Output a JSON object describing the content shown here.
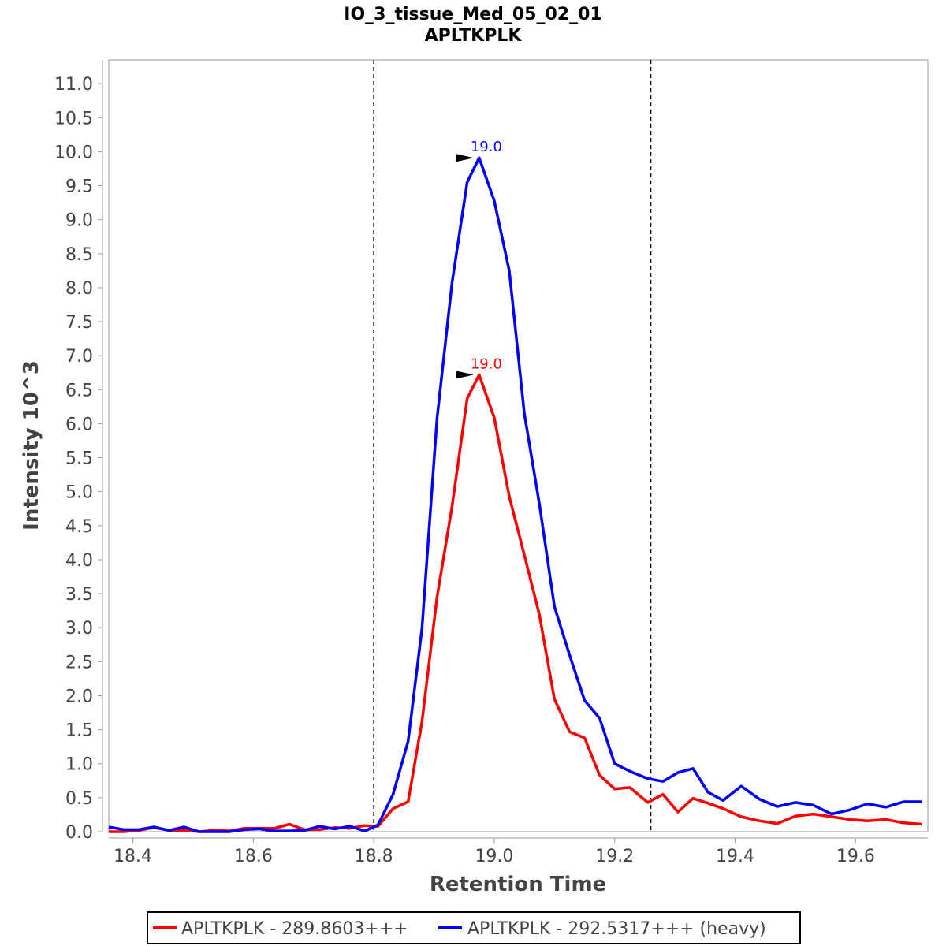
{
  "chart_data": {
    "type": "line",
    "title": "IO_3_tissue_Med_05_02_01",
    "subtitle": "APLTKPLK",
    "xlabel": "Retention Time",
    "ylabel": "Intensity 10^3",
    "xlim": [
      18.36,
      19.72
    ],
    "ylim": [
      0,
      11.35
    ],
    "xticks": [
      "18.4",
      "18.6",
      "18.8",
      "19.0",
      "19.2",
      "19.4",
      "19.6"
    ],
    "yticks": [
      "0.0",
      "0.5",
      "1.0",
      "1.5",
      "2.0",
      "2.5",
      "3.0",
      "3.5",
      "4.0",
      "4.5",
      "5.0",
      "5.5",
      "6.0",
      "6.5",
      "7.0",
      "7.5",
      "8.0",
      "8.5",
      "9.0",
      "9.5",
      "10.0",
      "10.5",
      "11.0"
    ],
    "boundaries": [
      18.8,
      19.26
    ],
    "legend_position": "bottom",
    "series": [
      {
        "name": "APLTKPLK - 289.8603+++",
        "color": "#ff0000",
        "peak": {
          "x": 18.975,
          "y": 6.72,
          "label": "19.0"
        },
        "x": [
          18.36,
          18.385,
          18.41,
          18.435,
          18.46,
          18.485,
          18.51,
          18.535,
          18.56,
          18.585,
          18.61,
          18.635,
          18.66,
          18.685,
          18.71,
          18.735,
          18.76,
          18.785,
          18.807,
          18.832,
          18.857,
          18.88,
          18.905,
          18.93,
          18.955,
          18.975,
          19.0,
          19.025,
          19.05,
          19.075,
          19.1,
          19.125,
          19.15,
          19.175,
          19.2,
          19.225,
          19.255,
          19.28,
          19.305,
          19.33,
          19.355,
          19.38,
          19.41,
          19.44,
          19.47,
          19.5,
          19.53,
          19.56,
          19.59,
          19.62,
          19.65,
          19.68,
          19.71
        ],
        "y": [
          0.0,
          0.0,
          0.02,
          0.06,
          0.02,
          0.02,
          0.0,
          0.02,
          0.01,
          0.05,
          0.05,
          0.05,
          0.11,
          0.03,
          0.03,
          0.06,
          0.05,
          0.09,
          0.08,
          0.34,
          0.44,
          1.62,
          3.45,
          4.79,
          6.37,
          6.72,
          6.09,
          4.93,
          4.07,
          3.19,
          1.95,
          1.47,
          1.38,
          0.83,
          0.63,
          0.65,
          0.43,
          0.55,
          0.29,
          0.49,
          0.42,
          0.34,
          0.22,
          0.16,
          0.12,
          0.23,
          0.26,
          0.22,
          0.18,
          0.16,
          0.18,
          0.13,
          0.11
        ]
      },
      {
        "name": "APLTKPLK - 292.5317+++ (heavy)",
        "color": "#0000ff",
        "peak": {
          "x": 18.975,
          "y": 9.91,
          "label": "19.0"
        },
        "x": [
          18.36,
          18.385,
          18.41,
          18.435,
          18.46,
          18.485,
          18.51,
          18.535,
          18.56,
          18.585,
          18.61,
          18.635,
          18.66,
          18.685,
          18.71,
          18.735,
          18.76,
          18.785,
          18.807,
          18.832,
          18.857,
          18.88,
          18.905,
          18.93,
          18.955,
          18.975,
          19.0,
          19.025,
          19.05,
          19.075,
          19.1,
          19.125,
          19.15,
          19.175,
          19.2,
          19.225,
          19.255,
          19.28,
          19.305,
          19.33,
          19.355,
          19.38,
          19.41,
          19.44,
          19.47,
          19.5,
          19.53,
          19.56,
          19.59,
          19.62,
          19.65,
          19.68,
          19.71
        ],
        "y": [
          0.07,
          0.03,
          0.03,
          0.07,
          0.02,
          0.07,
          0.0,
          0.0,
          0.0,
          0.03,
          0.04,
          0.01,
          0.01,
          0.02,
          0.08,
          0.04,
          0.08,
          0.01,
          0.1,
          0.55,
          1.33,
          2.99,
          6.08,
          8.08,
          9.55,
          9.91,
          9.28,
          8.25,
          6.15,
          4.82,
          3.31,
          2.6,
          1.93,
          1.67,
          1.0,
          0.89,
          0.78,
          0.74,
          0.87,
          0.93,
          0.58,
          0.46,
          0.67,
          0.48,
          0.37,
          0.43,
          0.39,
          0.26,
          0.32,
          0.41,
          0.36,
          0.44,
          0.44
        ]
      }
    ]
  }
}
